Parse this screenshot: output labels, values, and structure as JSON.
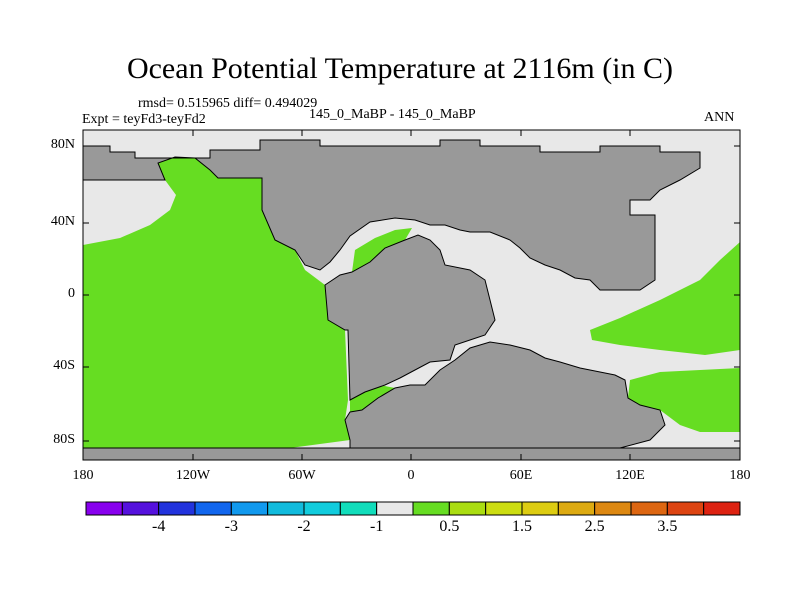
{
  "title": "Ocean Potential Temperature at 2116m (in C)",
  "stats_text": "rmsd= 0.515965 diff= 0.494029",
  "expt_text": "Expt = teyFd3-teyFd2",
  "period_text": "145_0_MaBP - 145_0_MaBP",
  "season_text": "ANN",
  "colors": {
    "land": "#999999",
    "near_zero": "#e8e8e8",
    "positive": "#66dd22",
    "outline": "#000000"
  },
  "map": {
    "lat_ticks": [
      "80N",
      "40N",
      "0",
      "40S",
      "80S"
    ],
    "lon_ticks": [
      "180",
      "120W",
      "60W",
      "0",
      "60E",
      "120E",
      "180"
    ]
  },
  "colorbar": {
    "colors": [
      "#8800ee",
      "#5511dd",
      "#2233dd",
      "#1166ee",
      "#1199ee",
      "#11bbdd",
      "#11ccdd",
      "#11ddbb",
      "#e8e8e8",
      "#66dd22",
      "#aadd11",
      "#ccdd11",
      "#ddcc11",
      "#ddaa11",
      "#dd8811",
      "#dd6611",
      "#dd4411",
      "#dd2211"
    ],
    "labels": [
      "-4",
      "-3",
      "-2",
      "-1",
      "0.5",
      "1.5",
      "2.5",
      "3.5"
    ]
  }
}
